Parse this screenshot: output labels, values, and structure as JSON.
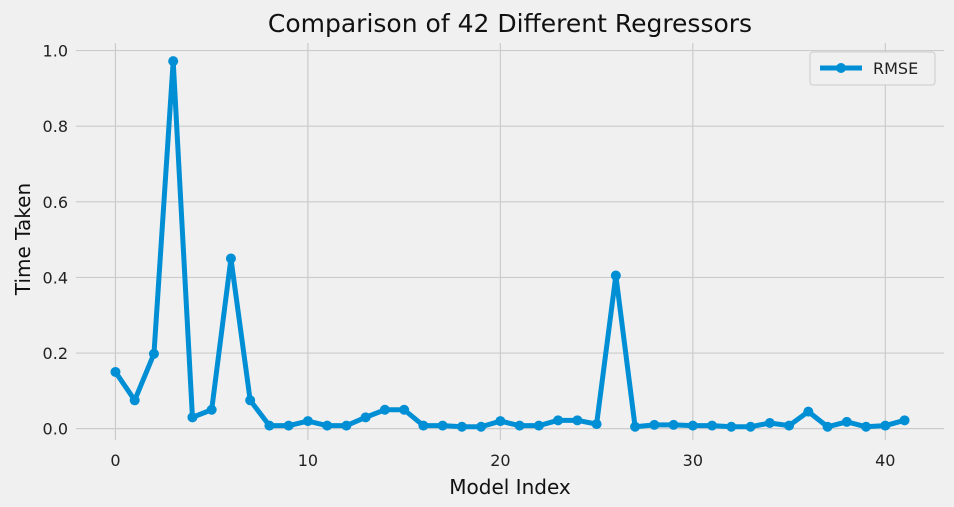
{
  "chart_data": {
    "type": "line",
    "title": "Comparison of 42 Different Regressors",
    "xlabel": "Model Index",
    "ylabel": "Time Taken",
    "xlim": [
      -2.05,
      43.05
    ],
    "ylim": [
      -0.03,
      1.02
    ],
    "xticks": [
      0,
      10,
      20,
      30,
      40
    ],
    "yticks": [
      0.0,
      0.2,
      0.4,
      0.6,
      0.8,
      1.0
    ],
    "grid": true,
    "legend": "top-right",
    "color": "#008fd5",
    "series": [
      {
        "name": "RMSE",
        "x": [
          0,
          1,
          2,
          3,
          4,
          5,
          6,
          7,
          8,
          9,
          10,
          11,
          12,
          13,
          14,
          15,
          16,
          17,
          18,
          19,
          20,
          21,
          22,
          23,
          24,
          25,
          26,
          27,
          28,
          29,
          30,
          31,
          32,
          33,
          34,
          35,
          36,
          37,
          38,
          39,
          40,
          41
        ],
        "values": [
          0.15,
          0.075,
          0.198,
          0.972,
          0.03,
          0.05,
          0.45,
          0.075,
          0.008,
          0.008,
          0.02,
          0.008,
          0.008,
          0.03,
          0.05,
          0.05,
          0.008,
          0.008,
          0.005,
          0.005,
          0.02,
          0.008,
          0.008,
          0.022,
          0.022,
          0.012,
          0.405,
          0.005,
          0.01,
          0.01,
          0.008,
          0.008,
          0.005,
          0.005,
          0.015,
          0.008,
          0.045,
          0.005,
          0.018,
          0.005,
          0.008,
          0.022
        ]
      }
    ]
  }
}
